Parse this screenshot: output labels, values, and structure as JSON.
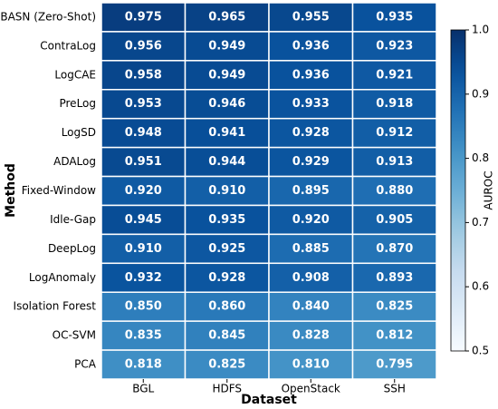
{
  "chart_data": {
    "type": "heatmap",
    "xlabel": "Dataset",
    "ylabel": "Method",
    "colorbar_label": "AUROC",
    "cmap": "Blues",
    "categories": [
      "BGL",
      "HDFS",
      "OpenStack",
      "SSH"
    ],
    "rows": [
      "BASN (Zero-Shot)",
      "ContraLog",
      "LogCAE",
      "PreLog",
      "LogSD",
      "ADALog",
      "Fixed-Window",
      "Idle-Gap",
      "DeepLog",
      "LogAnomaly",
      "Isolation Forest",
      "OC-SVM",
      "PCA"
    ],
    "values": [
      [
        0.975,
        0.965,
        0.955,
        0.935
      ],
      [
        0.956,
        0.949,
        0.936,
        0.923
      ],
      [
        0.958,
        0.949,
        0.936,
        0.921
      ],
      [
        0.953,
        0.946,
        0.933,
        0.918
      ],
      [
        0.948,
        0.941,
        0.928,
        0.912
      ],
      [
        0.951,
        0.944,
        0.929,
        0.913
      ],
      [
        0.92,
        0.91,
        0.895,
        0.88
      ],
      [
        0.945,
        0.935,
        0.92,
        0.905
      ],
      [
        0.91,
        0.925,
        0.885,
        0.87
      ],
      [
        0.932,
        0.928,
        0.908,
        0.893
      ],
      [
        0.85,
        0.86,
        0.84,
        0.825
      ],
      [
        0.835,
        0.845,
        0.828,
        0.812
      ],
      [
        0.818,
        0.825,
        0.81,
        0.795
      ]
    ],
    "value_labels": [
      [
        "0.975",
        "0.965",
        "0.955",
        "0.935"
      ],
      [
        "0.956",
        "0.949",
        "0.936",
        "0.923"
      ],
      [
        "0.958",
        "0.949",
        "0.936",
        "0.921"
      ],
      [
        "0.953",
        "0.946",
        "0.933",
        "0.918"
      ],
      [
        "0.948",
        "0.941",
        "0.928",
        "0.912"
      ],
      [
        "0.951",
        "0.944",
        "0.929",
        "0.913"
      ],
      [
        "0.920",
        "0.910",
        "0.895",
        "0.880"
      ],
      [
        "0.945",
        "0.935",
        "0.920",
        "0.905"
      ],
      [
        "0.910",
        "0.925",
        "0.885",
        "0.870"
      ],
      [
        "0.932",
        "0.928",
        "0.908",
        "0.893"
      ],
      [
        "0.850",
        "0.860",
        "0.840",
        "0.825"
      ],
      [
        "0.835",
        "0.845",
        "0.828",
        "0.812"
      ],
      [
        "0.818",
        "0.825",
        "0.810",
        "0.795"
      ]
    ],
    "clim": [
      0.5,
      1
    ],
    "cticks": [
      0.5,
      0.6,
      0.7,
      0.8,
      0.9,
      {
        "value": 1,
        "label": "1.0"
      }
    ]
  }
}
